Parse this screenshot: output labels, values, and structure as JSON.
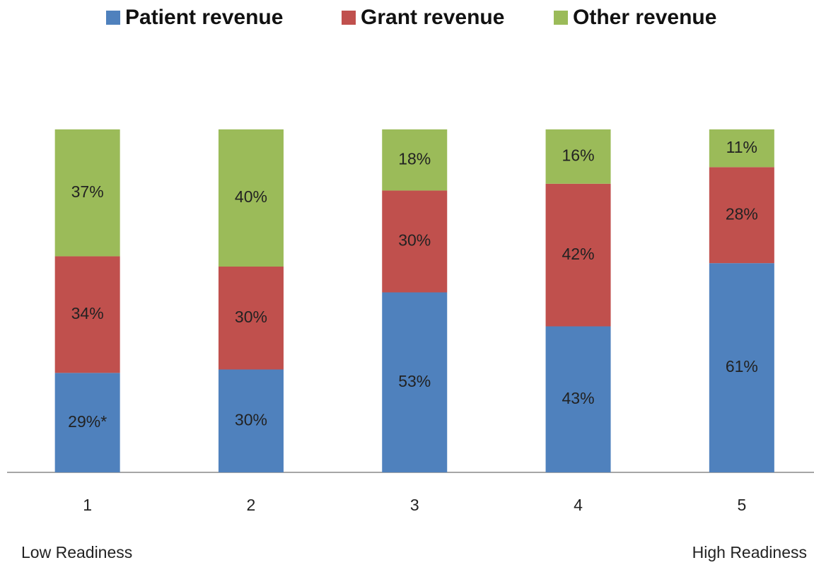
{
  "chart_data": {
    "type": "bar",
    "stacking": "percent",
    "categories": [
      "1",
      "2",
      "3",
      "4",
      "5"
    ],
    "series": [
      {
        "name": "Patient revenue",
        "color": "#4f81bd",
        "values": [
          29,
          30,
          53,
          43,
          61
        ],
        "value_labels": [
          "29%*",
          "30%",
          "53%",
          "43%",
          "61%"
        ]
      },
      {
        "name": "Grant revenue",
        "color": "#c0504d",
        "values": [
          34,
          30,
          30,
          42,
          28
        ],
        "value_labels": [
          "34%",
          "30%",
          "30%",
          "42%",
          "28%"
        ]
      },
      {
        "name": "Other revenue",
        "color": "#9bbb59",
        "values": [
          37,
          40,
          18,
          16,
          11
        ],
        "value_labels": [
          "37%",
          "40%",
          "18%",
          "16%",
          "11%"
        ]
      }
    ],
    "annotations": [
      "Low Readiness",
      "High Readiness"
    ],
    "legend": "top"
  }
}
